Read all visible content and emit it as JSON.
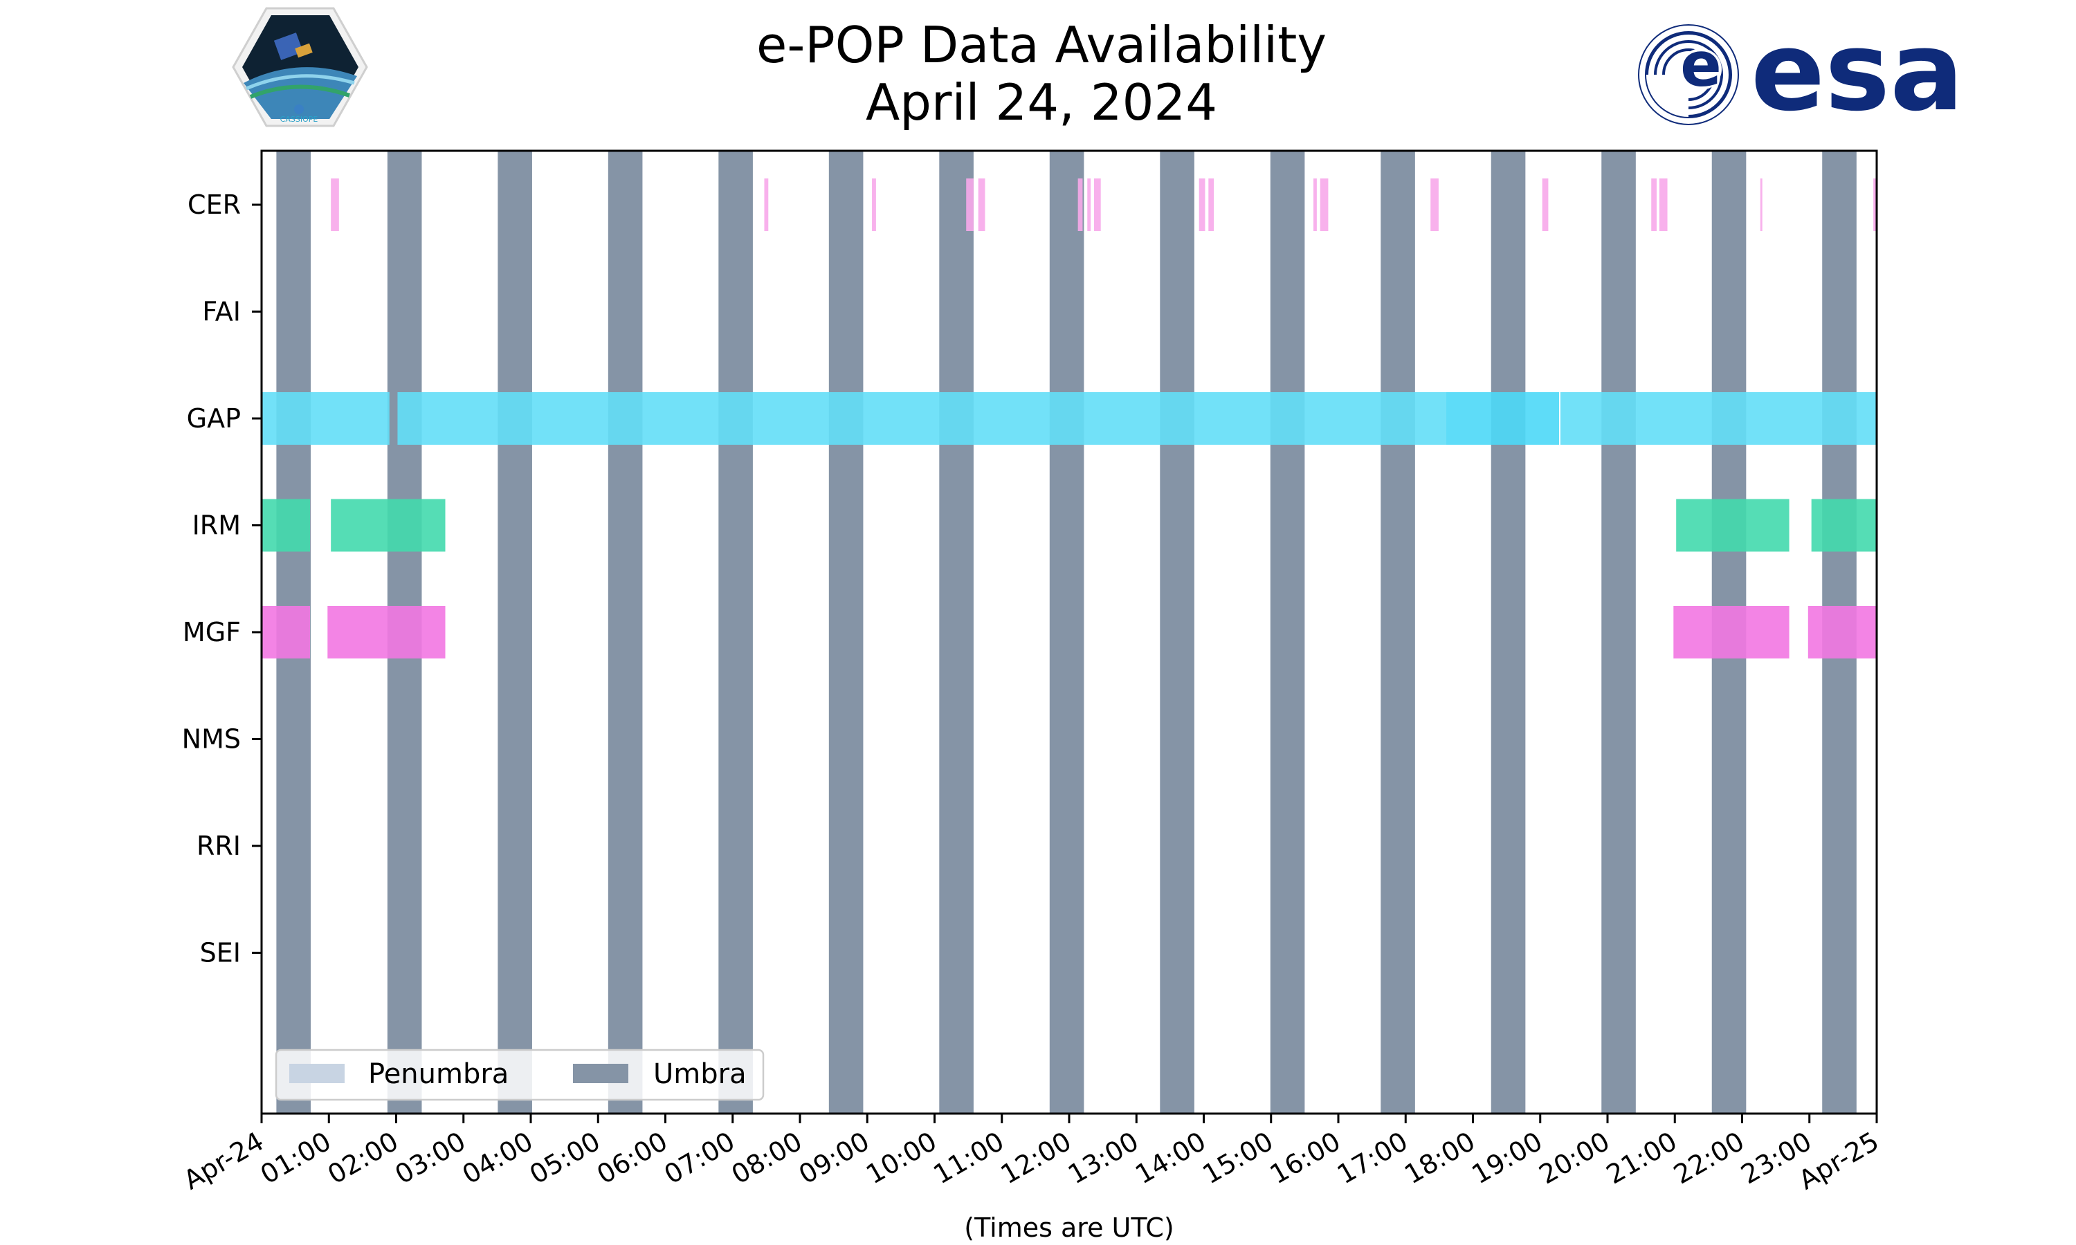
{
  "chart_data": {
    "type": "timeline",
    "title_line1": "e-POP Data Availability",
    "title_line2": "April 24, 2024",
    "xlabel": "(Times are UTC)",
    "xlim_hours": [
      0,
      24
    ],
    "x_tick_labels": [
      "Apr-24",
      "01:00",
      "02:00",
      "03:00",
      "04:00",
      "05:00",
      "06:00",
      "07:00",
      "08:00",
      "09:00",
      "10:00",
      "11:00",
      "12:00",
      "13:00",
      "14:00",
      "15:00",
      "16:00",
      "17:00",
      "18:00",
      "19:00",
      "20:00",
      "21:00",
      "22:00",
      "23:00",
      "Apr-25"
    ],
    "instruments": [
      "CER",
      "FAI",
      "GAP",
      "IRM",
      "MGF",
      "NMS",
      "RRI",
      "SEI"
    ],
    "colors": {
      "umbra": "#8594a6",
      "penumbra": "#c8d4e3",
      "CER": "#f7a8ea",
      "GAP": "#63def7",
      "GAP_alt": "#4dd8f7",
      "IRM": "#42d9ad",
      "MGF": "#f277e2"
    },
    "umbra_intervals_hours": [
      [
        0.22,
        0.73
      ],
      [
        1.87,
        2.38
      ],
      [
        3.51,
        4.02
      ],
      [
        5.15,
        5.66
      ],
      [
        6.79,
        7.3
      ],
      [
        8.43,
        8.94
      ],
      [
        10.07,
        10.58
      ],
      [
        11.71,
        12.22
      ],
      [
        13.35,
        13.86
      ],
      [
        14.99,
        15.5
      ],
      [
        16.63,
        17.14
      ],
      [
        18.27,
        18.78
      ],
      [
        19.91,
        20.42
      ],
      [
        21.55,
        22.06
      ],
      [
        23.19,
        23.7
      ]
    ],
    "series": [
      {
        "name": "CER",
        "intervals_hours": [
          [
            1.03,
            1.15
          ],
          [
            7.47,
            7.53
          ],
          [
            9.07,
            9.13
          ],
          [
            10.47,
            10.58
          ],
          [
            10.65,
            10.75
          ],
          [
            12.13,
            12.2
          ],
          [
            12.27,
            12.32
          ],
          [
            12.37,
            12.47
          ],
          [
            13.93,
            14.02
          ],
          [
            14.07,
            14.15
          ],
          [
            15.63,
            15.68
          ],
          [
            15.73,
            15.85
          ],
          [
            17.37,
            17.49
          ],
          [
            19.03,
            19.12
          ],
          [
            20.65,
            20.73
          ],
          [
            20.77,
            20.89
          ],
          [
            22.27,
            22.3
          ],
          [
            23.95,
            24.0
          ]
        ]
      },
      {
        "name": "FAI",
        "intervals_hours": []
      },
      {
        "name": "GAP",
        "intervals_hours": [
          [
            0.0,
            1.9
          ],
          [
            2.02,
            17.6
          ],
          [
            17.6,
            19.28
          ],
          [
            19.3,
            24.0
          ]
        ],
        "alt_segment_index": 2
      },
      {
        "name": "IRM",
        "intervals_hours": [
          [
            0.0,
            0.72
          ],
          [
            1.03,
            2.73
          ],
          [
            21.02,
            22.7
          ],
          [
            23.03,
            24.0
          ]
        ]
      },
      {
        "name": "MGF",
        "intervals_hours": [
          [
            0.0,
            0.72
          ],
          [
            0.98,
            2.73
          ],
          [
            20.98,
            22.7
          ],
          [
            22.98,
            24.0
          ]
        ]
      },
      {
        "name": "NMS",
        "intervals_hours": []
      },
      {
        "name": "RRI",
        "intervals_hours": []
      },
      {
        "name": "SEI",
        "intervals_hours": []
      }
    ],
    "legend": {
      "placement": "bottom-left",
      "entries": [
        {
          "label": "Penumbra",
          "color_key": "penumbra"
        },
        {
          "label": "Umbra",
          "color_key": "umbra"
        }
      ]
    }
  },
  "logos": {
    "cassiope_caption": "CASSIOPE",
    "esa_wordmark": "esa",
    "esa_color": "#0f2b7a"
  }
}
